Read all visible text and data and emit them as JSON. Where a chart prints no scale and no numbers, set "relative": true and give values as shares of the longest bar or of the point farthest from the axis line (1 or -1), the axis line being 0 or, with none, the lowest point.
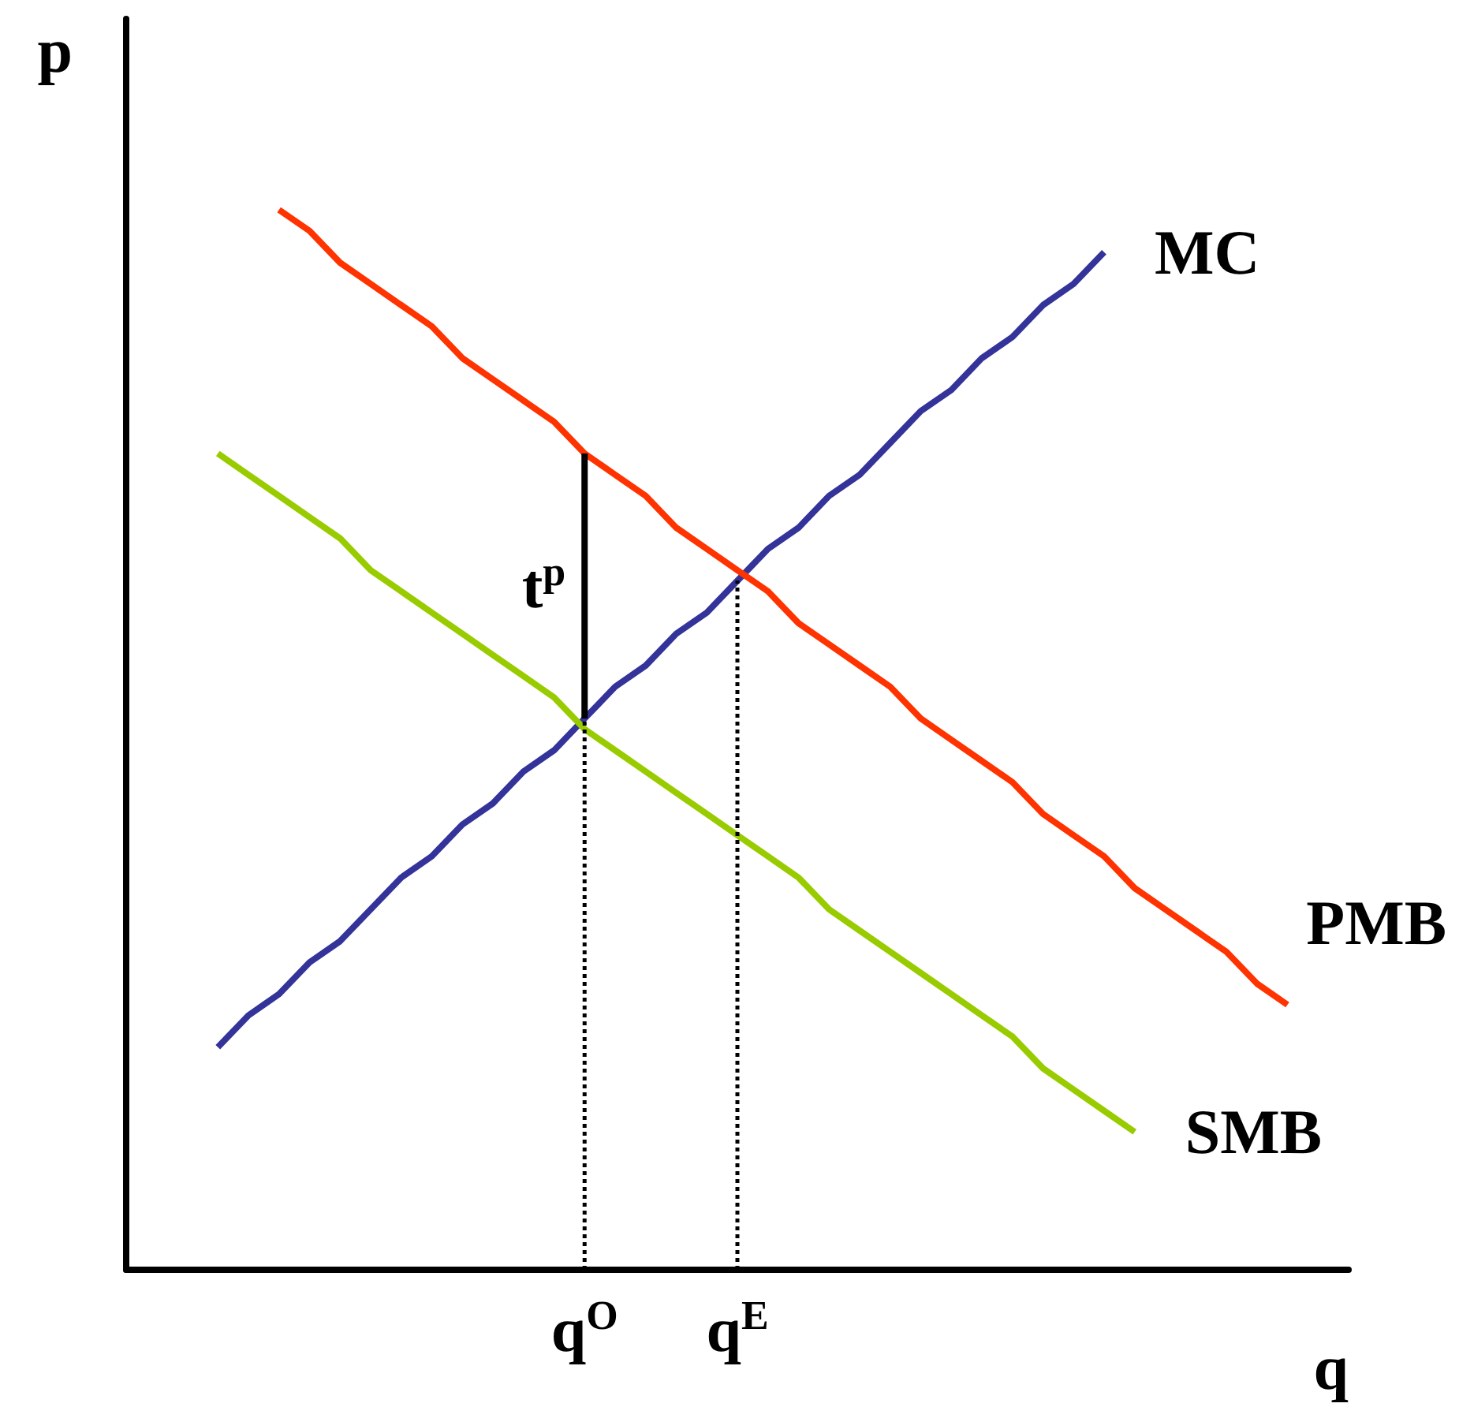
{
  "chart_data": {
    "type": "line",
    "relative": true,
    "xlabel": "q",
    "ylabel": "p",
    "categories": [
      null,
      null,
      null,
      null,
      null,
      null,
      null,
      null,
      null,
      null,
      null,
      null,
      null,
      null,
      null,
      "q$^{O}$",
      null,
      null,
      null,
      null,
      "q$^{E}$",
      null,
      null,
      null,
      null,
      null,
      null,
      null,
      null,
      null,
      null,
      null,
      null,
      null,
      null,
      null,
      null,
      null,
      null,
      null,
      null
    ],
    "ylim": [
      0,
      1.18
    ],
    "series": [
      {
        "name": "MC",
        "color": "#333399",
        "values": [
          null,
          null,
          null,
          0.21,
          0.24,
          0.26,
          0.29,
          0.31,
          0.34,
          0.37,
          0.39,
          0.42,
          0.44,
          0.47,
          0.49,
          0.52,
          0.55,
          0.57,
          0.6,
          0.62,
          0.65,
          0.68,
          0.7,
          0.73,
          0.75,
          0.78,
          0.81,
          0.83,
          0.86,
          0.88,
          0.91,
          0.93,
          0.96,
          null,
          null,
          null,
          null,
          null,
          null,
          null,
          null
        ]
      },
      {
        "name": "PMB",
        "color": "#ff3300",
        "values": [
          null,
          null,
          null,
          null,
          null,
          1,
          0.98,
          0.95,
          0.93,
          0.91,
          0.89,
          0.86,
          0.84,
          0.82,
          0.8,
          0.77,
          0.75,
          0.73,
          0.7,
          0.68,
          0.66,
          0.64,
          0.61,
          0.59,
          0.57,
          0.55,
          0.52,
          0.5,
          0.48,
          0.46,
          0.43,
          0.41,
          0.39,
          0.36,
          0.34,
          0.32,
          0.3,
          0.27,
          0.25,
          null,
          null
        ]
      },
      {
        "name": "SMB",
        "color": "#99cc00",
        "values": [
          null,
          null,
          null,
          0.77,
          0.75,
          0.73,
          0.71,
          0.69,
          0.66,
          0.64,
          0.62,
          0.6,
          0.58,
          0.56,
          0.54,
          0.51,
          0.49,
          0.47,
          0.45,
          0.43,
          0.41,
          0.39,
          0.37,
          0.34,
          0.32,
          0.3,
          0.28,
          0.26,
          0.24,
          0.22,
          0.19,
          0.17,
          0.15,
          0.13,
          null,
          null,
          null,
          null,
          null,
          null,
          null
        ]
      },
      {
        "name": "t$^{p}$",
        "color": "#000000",
        "x": [
          "q$^{O}$",
          "q$^{O}$"
        ],
        "values": [
          0.52,
          0.77
        ]
      },
      {
        "color": "#000000",
        "line_style": "dotted",
        "x": [
          "q$^{O}$",
          "q$^{O}$"
        ],
        "values": [
          0,
          0.52
        ]
      },
      {
        "color": "#000000",
        "line_style": "dotted",
        "x": [
          "q$^{E}$",
          "q$^{E}$"
        ],
        "values": [
          0,
          0.65
        ]
      }
    ]
  }
}
